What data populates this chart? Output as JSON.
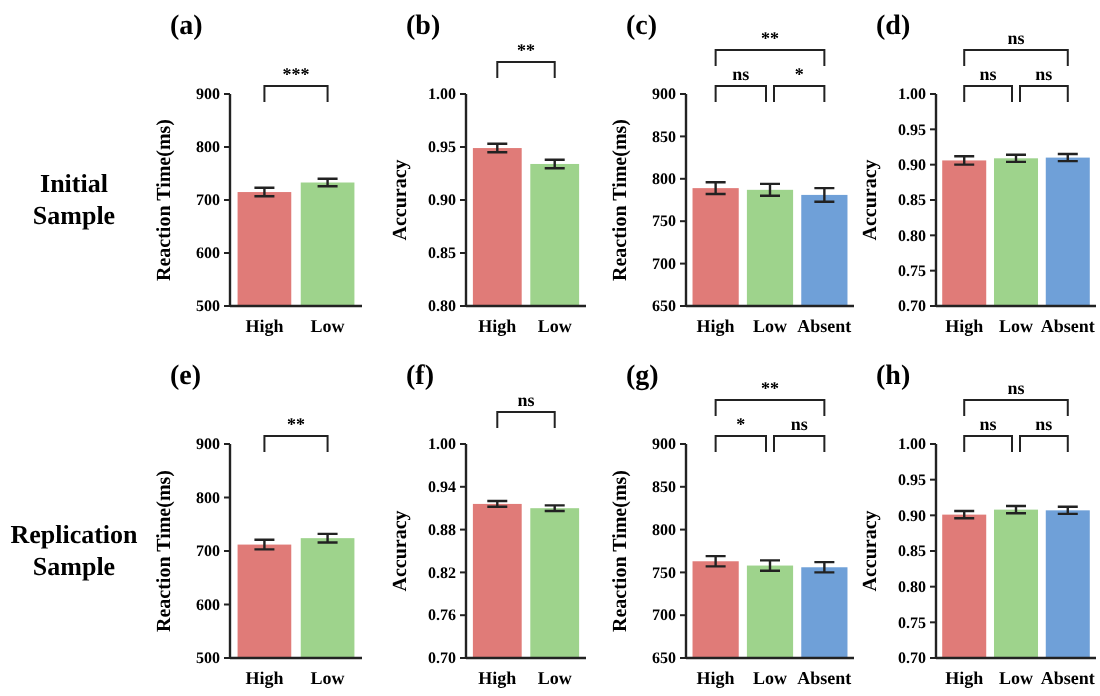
{
  "chart_data": [
    {
      "type": "bar",
      "title": "(a)",
      "subtitle": "Initial Sample",
      "ylabel": "Reaction Time(ms)",
      "categories": [
        "High",
        "Low"
      ],
      "values": [
        715,
        733
      ],
      "errors": [
        8,
        7
      ],
      "colors": [
        "#e07b78",
        "#9ed38c"
      ],
      "ylim": [
        500,
        900
      ],
      "yticks": [
        500,
        600,
        700,
        800,
        900
      ],
      "annotations": [
        "***"
      ]
    },
    {
      "type": "bar",
      "title": "(b)",
      "ylabel": "Accuracy",
      "categories": [
        "High",
        "Low"
      ],
      "values": [
        0.949,
        0.934
      ],
      "errors": [
        0.004,
        0.004
      ],
      "colors": [
        "#e07b78",
        "#9ed38c"
      ],
      "ylim": [
        0.8,
        1.0
      ],
      "yticks": [
        {
          "value": 0.8,
          "label": "0.80"
        },
        0.85,
        {
          "value": 0.9,
          "label": "0.90"
        },
        0.95,
        {
          "value": 1.0,
          "label": "1.00"
        }
      ],
      "annotations": [
        "**"
      ]
    },
    {
      "type": "bar",
      "title": "(c)",
      "ylabel": "Reaction Time(ms)",
      "categories": [
        "High",
        "Low",
        "Absent"
      ],
      "values": [
        789,
        787,
        781
      ],
      "errors": [
        7,
        7,
        8
      ],
      "colors": [
        "#e07b78",
        "#9ed38c",
        "#6fa0d8"
      ],
      "ylim": [
        650,
        900
      ],
      "yticks": [
        650,
        700,
        750,
        800,
        850,
        900
      ],
      "annotations": [
        "ns",
        "*",
        "**"
      ]
    },
    {
      "type": "bar",
      "title": "(d)",
      "ylabel": "Accuracy",
      "categories": [
        "High",
        "Low",
        "Absent"
      ],
      "values": [
        0.906,
        0.909,
        0.91
      ],
      "errors": [
        0.006,
        0.005,
        0.005
      ],
      "colors": [
        "#e07b78",
        "#9ed38c",
        "#6fa0d8"
      ],
      "ylim": [
        0.7,
        1.0
      ],
      "yticks": [
        {
          "value": 0.7,
          "label": "0.70"
        },
        0.75,
        {
          "value": 0.8,
          "label": "0.80"
        },
        0.85,
        {
          "value": 0.9,
          "label": "0.90"
        },
        0.95,
        {
          "value": 1.0,
          "label": "1.00"
        }
      ],
      "annotations": [
        "ns",
        "ns",
        "ns"
      ]
    },
    {
      "type": "bar",
      "title": "(e)",
      "subtitle": "Replication Sample",
      "ylabel": "Reaction Time(ms)",
      "categories": [
        "High",
        "Low"
      ],
      "values": [
        712,
        724
      ],
      "errors": [
        9,
        8
      ],
      "colors": [
        "#e07b78",
        "#9ed38c"
      ],
      "ylim": [
        500,
        900
      ],
      "yticks": [
        500,
        600,
        700,
        800,
        900
      ],
      "annotations": [
        "**"
      ]
    },
    {
      "type": "bar",
      "title": "(f)",
      "ylabel": "Accuracy",
      "categories": [
        "High",
        "Low"
      ],
      "values": [
        0.916,
        0.91
      ],
      "errors": [
        0.004,
        0.004
      ],
      "colors": [
        "#e07b78",
        "#9ed38c"
      ],
      "ylim": [
        0.7,
        1.0
      ],
      "yticks": [
        {
          "value": 0.7,
          "label": "0.70"
        },
        0.76,
        0.82,
        0.88,
        0.94,
        {
          "value": 1.0,
          "label": "1.00"
        }
      ],
      "annotations": [
        "ns"
      ]
    },
    {
      "type": "bar",
      "title": "(g)",
      "ylabel": "Reaction Time(ms)",
      "categories": [
        "High",
        "Low",
        "Absent"
      ],
      "values": [
        763,
        758,
        756
      ],
      "errors": [
        6,
        6,
        6
      ],
      "colors": [
        "#e07b78",
        "#9ed38c",
        "#6fa0d8"
      ],
      "ylim": [
        650,
        900
      ],
      "yticks": [
        650,
        700,
        750,
        800,
        850,
        900
      ],
      "annotations": [
        "*",
        "ns",
        "**"
      ]
    },
    {
      "type": "bar",
      "title": "(h)",
      "ylabel": "Accuracy",
      "categories": [
        "High",
        "Low",
        "Absent"
      ],
      "values": [
        0.901,
        0.908,
        0.907
      ],
      "errors": [
        0.005,
        0.005,
        0.005
      ],
      "colors": [
        "#e07b78",
        "#9ed38c",
        "#6fa0d8"
      ],
      "ylim": [
        0.7,
        1.0
      ],
      "yticks": [
        {
          "value": 0.7,
          "label": "0.70"
        },
        0.75,
        {
          "value": 0.8,
          "label": "0.80"
        },
        0.85,
        {
          "value": 0.9,
          "label": "0.90"
        },
        0.95,
        {
          "value": 1.0,
          "label": "1.00"
        }
      ],
      "annotations": [
        "ns",
        "ns",
        "ns"
      ]
    }
  ]
}
